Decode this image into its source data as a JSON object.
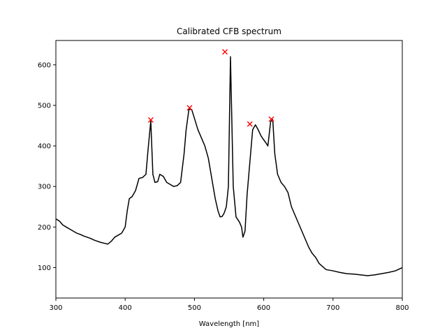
{
  "chart_data": {
    "type": "line",
    "title": "Calibrated CFB spectrum",
    "xlabel": "Wavelength [nm]",
    "ylabel": "",
    "xlim": [
      300,
      800
    ],
    "ylim": [
      25,
      660
    ],
    "xticks": [
      300,
      400,
      500,
      600,
      700,
      800
    ],
    "yticks": [
      100,
      200,
      300,
      400,
      500,
      600
    ],
    "grid": false,
    "colors": {
      "line": "#000000",
      "peak_marker": "#ff0000"
    },
    "series": [
      {
        "x": [
          300,
          305,
          310,
          315,
          320,
          325,
          330,
          335,
          340,
          345,
          350,
          355,
          360,
          365,
          370,
          375,
          380,
          385,
          390,
          395,
          400,
          403,
          406,
          410,
          415,
          420,
          425,
          430,
          433,
          437,
          440,
          443,
          447,
          450,
          455,
          460,
          465,
          470,
          475,
          480,
          485,
          488,
          492,
          496,
          500,
          505,
          510,
          515,
          520,
          525,
          530,
          534,
          537,
          540,
          543,
          546,
          549,
          552,
          556,
          560,
          565,
          568,
          570,
          573,
          576,
          580,
          584,
          588,
          592,
          596,
          600,
          603,
          606,
          610,
          613,
          616,
          620,
          625,
          630,
          635,
          640,
          645,
          650,
          655,
          660,
          665,
          670,
          675,
          680,
          690,
          700,
          710,
          720,
          730,
          740,
          750,
          760,
          770,
          780,
          790,
          800
        ],
        "values": [
          220,
          215,
          205,
          200,
          195,
          190,
          185,
          182,
          178,
          175,
          172,
          168,
          165,
          162,
          160,
          158,
          165,
          175,
          180,
          185,
          200,
          240,
          270,
          275,
          290,
          320,
          322,
          330,
          390,
          462,
          330,
          310,
          312,
          330,
          325,
          310,
          305,
          300,
          302,
          310,
          380,
          440,
          490,
          490,
          468,
          440,
          420,
          400,
          370,
          320,
          270,
          240,
          225,
          226,
          235,
          250,
          300,
          620,
          300,
          225,
          212,
          200,
          175,
          190,
          280,
          360,
          440,
          452,
          440,
          425,
          415,
          408,
          400,
          460,
          465,
          380,
          330,
          310,
          300,
          285,
          250,
          230,
          210,
          190,
          170,
          150,
          135,
          125,
          110,
          95,
          92,
          88,
          85,
          84,
          82,
          80,
          82,
          85,
          88,
          92,
          100
        ]
      }
    ],
    "peaks": [
      {
        "x": 437,
        "y": 464
      },
      {
        "x": 493,
        "y": 494
      },
      {
        "x": 544,
        "y": 632
      },
      {
        "x": 580,
        "y": 454
      },
      {
        "x": 611,
        "y": 466
      }
    ]
  }
}
